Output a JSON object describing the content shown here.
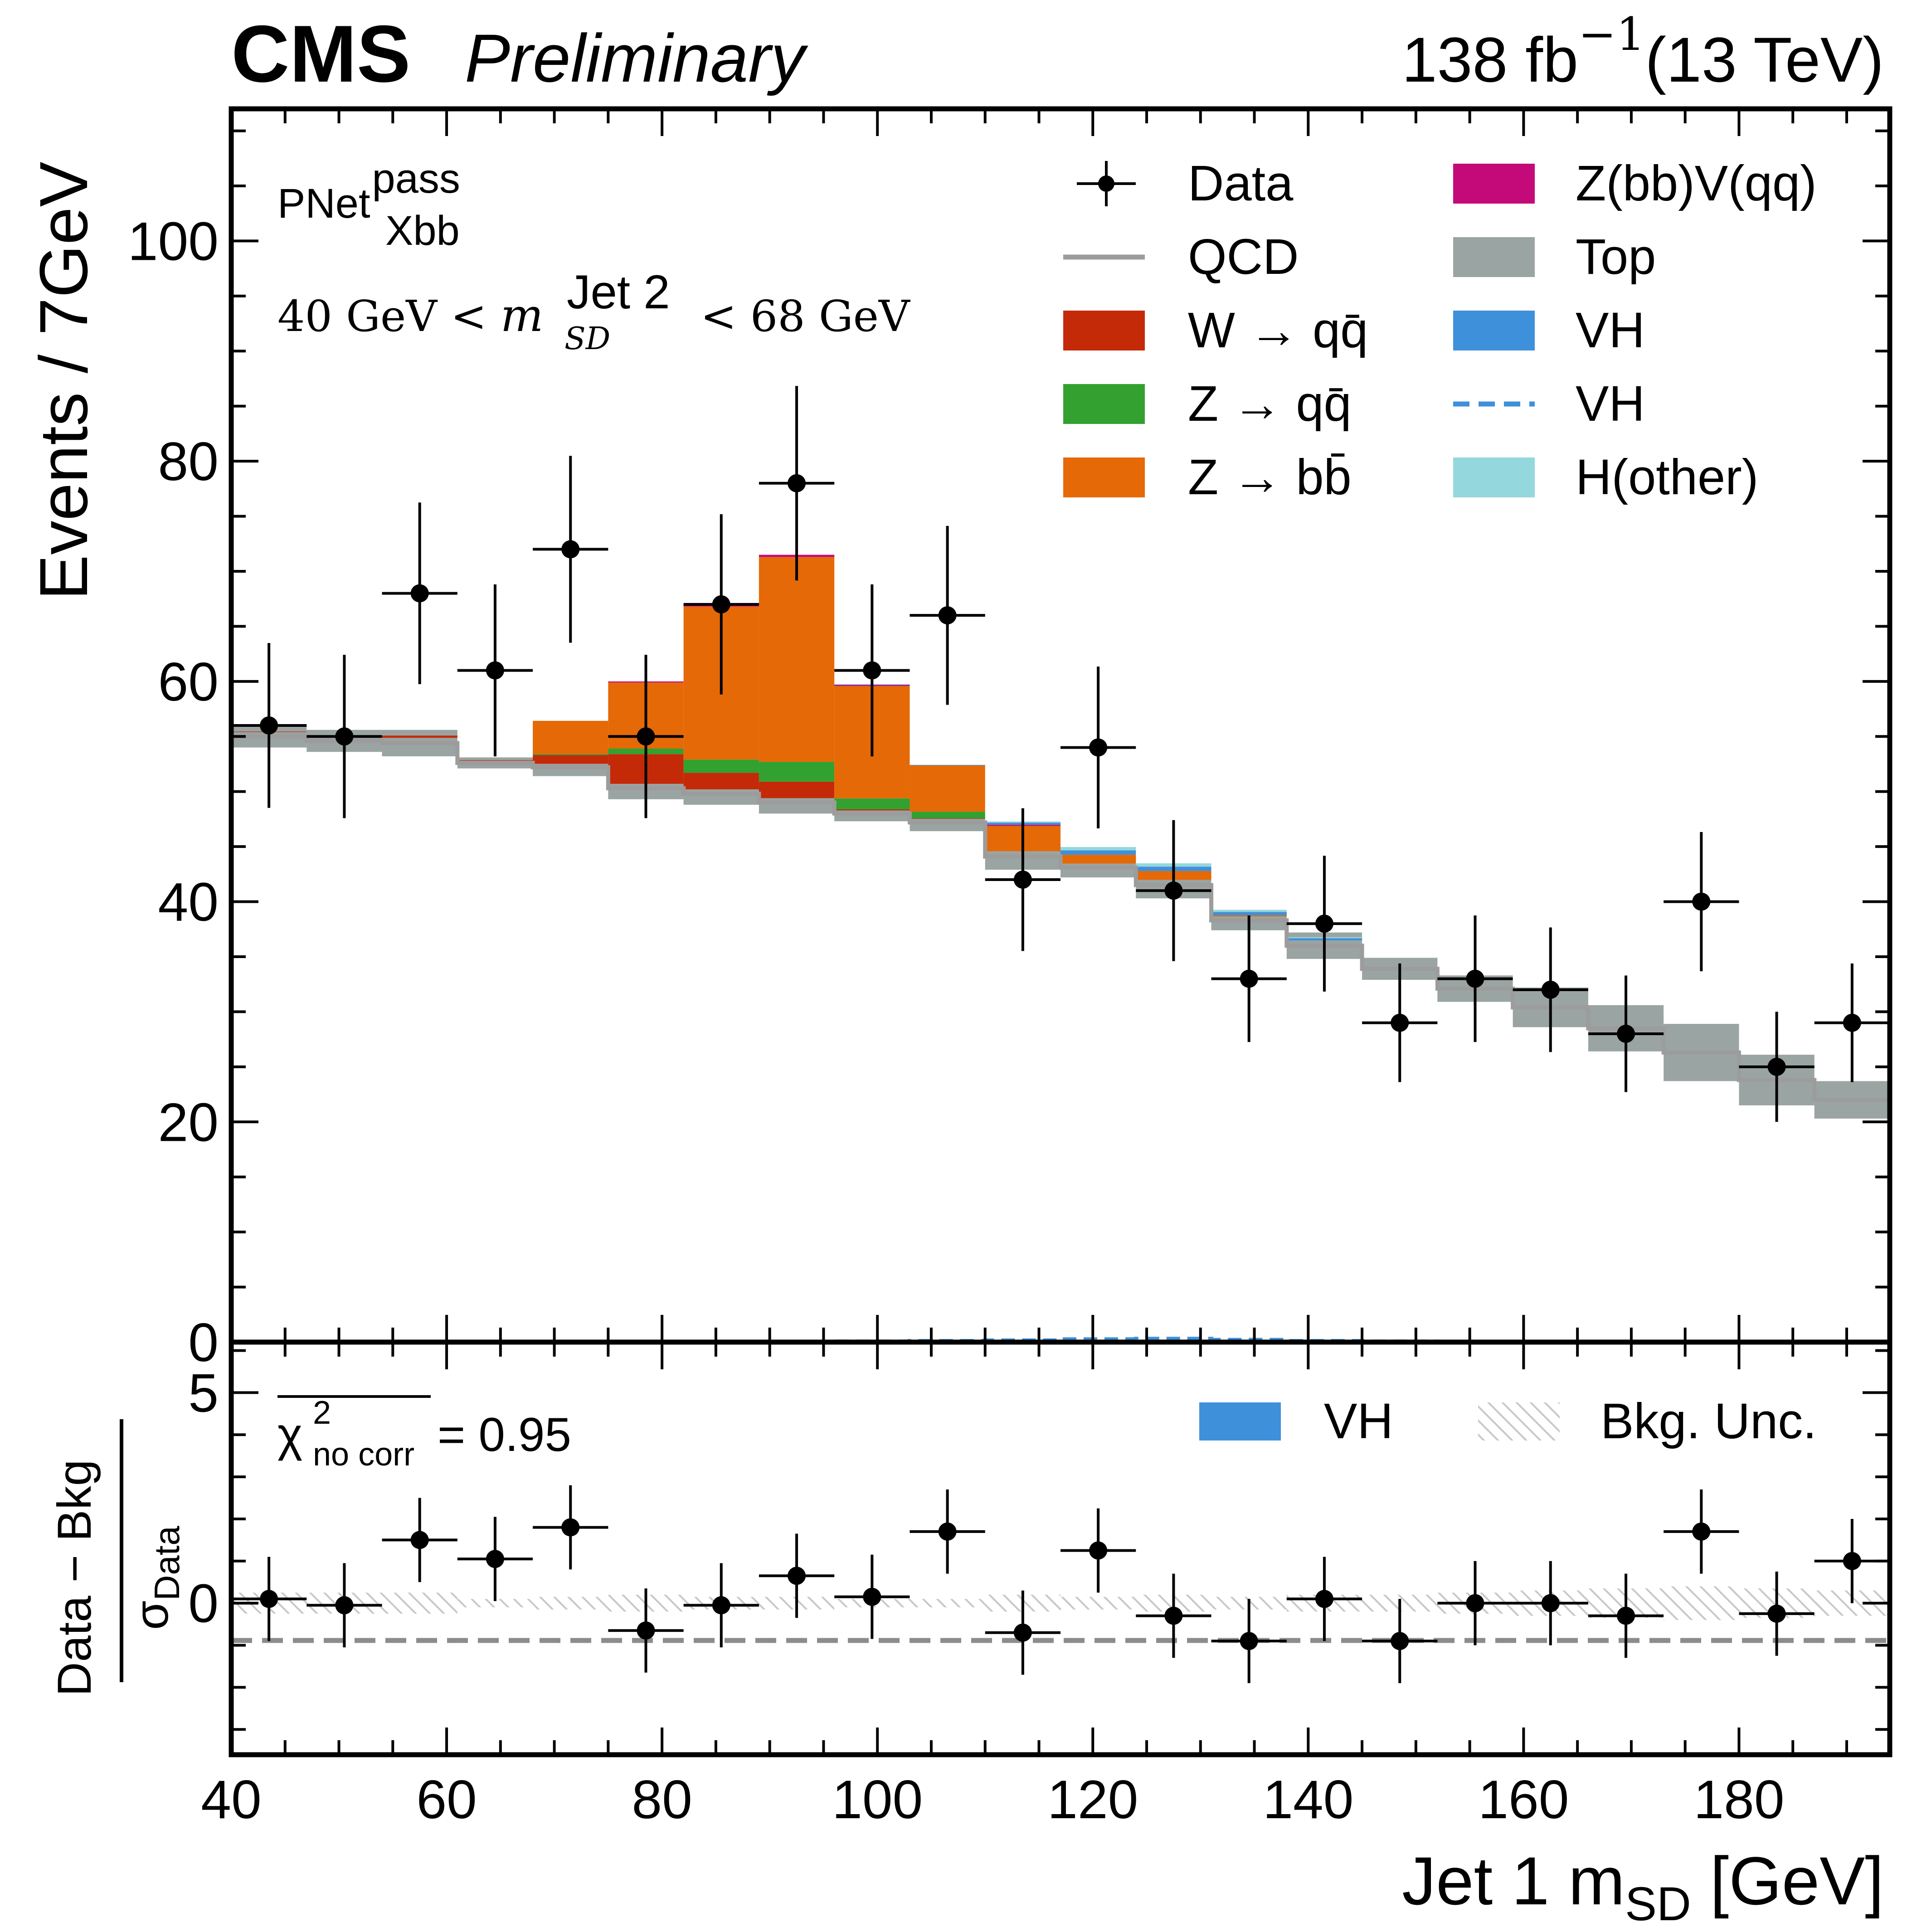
{
  "header": {
    "experiment": "CMS",
    "status": "Preliminary",
    "lumi": "138 fb",
    "lumi_exp": "−1",
    "energy": "(13 TeV)"
  },
  "annotations": {
    "tagger_base": "PNet",
    "tagger_sup": "pass",
    "tagger_sub": "Xbb",
    "cut_left": "40 GeV < ",
    "cut_m": "m",
    "cut_sup": "Jet 2",
    "cut_sub": "SD",
    "cut_right": " < 68 GeV",
    "chi2_symbol": "χ",
    "chi2_sup": "2",
    "chi2_sub": "no corr",
    "chi2_value": " = 0.95"
  },
  "legend_main": [
    {
      "label": "Data",
      "kind": "marker",
      "color": "#000000"
    },
    {
      "label": "QCD",
      "kind": "line",
      "color": "#9c9c9c"
    },
    {
      "label": "W → qq̄",
      "kind": "patch",
      "color": "#c42a08"
    },
    {
      "label": "Z → qq̄",
      "kind": "patch",
      "color": "#32a12f"
    },
    {
      "label": "Z → bb̄",
      "kind": "patch",
      "color": "#e56906"
    },
    {
      "label": "Z(bb)V(qq)",
      "kind": "patch",
      "color": "#c40a78"
    },
    {
      "label": "Top",
      "kind": "patch",
      "color": "#9aa4a2"
    },
    {
      "label": "VH",
      "kind": "patch",
      "color": "#3f90da"
    },
    {
      "label": "VH",
      "kind": "dashed",
      "color": "#3f90da"
    },
    {
      "label": "H(other)",
      "kind": "patch",
      "color": "#94d7dc"
    }
  ],
  "legend_ratio": [
    {
      "label": "VH",
      "kind": "patch",
      "color": "#3f90da"
    },
    {
      "label": "Bkg. Unc.",
      "kind": "hatch",
      "color": "#c8c8c8"
    }
  ],
  "chart_data": [
    {
      "type": "bar",
      "subtype": "stacked-histogram",
      "xlabel": "Jet 1 m",
      "xlabel_sub": "SD",
      "xlabel_unit": " [GeV]",
      "ylabel": "Events / 7GeV",
      "xlim": [
        40,
        194
      ],
      "ylim": [
        0,
        112
      ],
      "xticks": [
        40,
        60,
        80,
        100,
        120,
        140,
        160,
        180
      ],
      "yticks": [
        0,
        20,
        40,
        60,
        80,
        100
      ],
      "bin_edges": [
        40,
        47,
        54,
        61,
        68,
        75,
        82,
        89,
        96,
        103,
        110,
        117,
        124,
        131,
        138,
        145,
        152,
        159,
        166,
        173,
        180,
        187,
        194
      ],
      "data": {
        "x": [
          43.5,
          50.5,
          57.5,
          64.5,
          71.5,
          78.5,
          85.5,
          92.5,
          99.5,
          106.5,
          113.5,
          120.5,
          127.5,
          134.5,
          141.5,
          148.5,
          155.5,
          162.5,
          169.5,
          176.5,
          183.5,
          190.5
        ],
        "y": [
          56,
          55,
          68,
          61,
          72,
          55,
          67,
          78,
          61,
          66,
          42,
          54,
          41,
          33,
          38,
          29,
          33,
          32,
          28,
          40,
          25,
          29
        ]
      },
      "qcd": [
        55.0,
        54.6,
        54.4,
        52.6,
        52.2,
        50.3,
        49.8,
        49.0,
        48.0,
        47.2,
        44.1,
        43.1,
        41.5,
        38.3,
        36.0,
        33.9,
        32.1,
        30.4,
        28.5,
        26.3,
        23.8,
        22.0
      ],
      "qcd_band": [
        1.0,
        1.0,
        1.2,
        0.5,
        0.8,
        1.0,
        1.0,
        1.0,
        0.7,
        0.8,
        1.2,
        0.9,
        1.2,
        0.9,
        1.2,
        1.0,
        1.2,
        1.8,
        2.1,
        2.6,
        2.3,
        1.7
      ],
      "series": [
        {
          "name": "Top",
          "values": [
            0,
            0,
            0,
            0,
            0,
            0,
            0,
            0,
            0,
            0,
            0,
            0,
            0,
            0,
            0,
            0,
            0,
            0,
            0,
            0,
            0,
            0
          ]
        },
        {
          "name": "W → qq̄",
          "values": [
            0.05,
            0.05,
            0.2,
            0.05,
            0.8,
            2.7,
            1.5,
            1.5,
            0.1,
            0.05,
            0,
            0,
            0,
            0,
            0,
            0,
            0,
            0,
            0,
            0,
            0,
            0
          ]
        },
        {
          "name": "Z → qq̄",
          "values": [
            0,
            0,
            0,
            0,
            0.1,
            0.5,
            1.2,
            1.8,
            1.0,
            0.6,
            0,
            0,
            0,
            0,
            0,
            0,
            0,
            0,
            0,
            0,
            0,
            0
          ]
        },
        {
          "name": "Z → bb̄",
          "values": [
            0,
            0,
            0,
            0,
            3.0,
            6.0,
            13.9,
            18.6,
            10.2,
            4.2,
            2.3,
            0.8,
            0.8,
            0.1,
            0,
            0,
            0,
            0,
            0,
            0,
            0,
            0
          ]
        },
        {
          "name": "Z(bb)V(qq)",
          "values": [
            0,
            0,
            0,
            0,
            0,
            0.1,
            0.2,
            0.2,
            0.1,
            0,
            0.1,
            0,
            0,
            0,
            0,
            0,
            0,
            0,
            0,
            0,
            0,
            0
          ]
        },
        {
          "name": "VH",
          "values": [
            0,
            0,
            0,
            0,
            0,
            0,
            0,
            0,
            0.05,
            0.05,
            0.2,
            0.4,
            0.4,
            0.3,
            0.2,
            0,
            0,
            0,
            0,
            0,
            0,
            0
          ]
        },
        {
          "name": "H(other)",
          "values": [
            0,
            0,
            0,
            0,
            0,
            0,
            0,
            0,
            0,
            0,
            0.1,
            0.3,
            0.3,
            0.2,
            0.1,
            0,
            0,
            0,
            0,
            0,
            0,
            0
          ]
        }
      ],
      "vh_signal_dashed": [
        0,
        0,
        0,
        0,
        0,
        0,
        0,
        0.02,
        0.05,
        0.1,
        0.15,
        0.25,
        0.3,
        0.2,
        0.1,
        0.05,
        0,
        0,
        0,
        0,
        0,
        0
      ]
    },
    {
      "type": "scatter",
      "subtype": "pull",
      "ylabel_num": "Data − Bkg",
      "ylabel_den": "σ",
      "ylabel_den_sub": "Data",
      "xlim": [
        40,
        194
      ],
      "ylim": [
        -3.6,
        6.2
      ],
      "yticks": [
        0,
        5
      ],
      "x": [
        43.5,
        50.5,
        57.5,
        64.5,
        71.5,
        78.5,
        85.5,
        92.5,
        99.5,
        106.5,
        113.5,
        120.5,
        127.5,
        134.5,
        141.5,
        148.5,
        155.5,
        162.5,
        169.5,
        176.5,
        183.5,
        190.5
      ],
      "y": [
        0.1,
        -0.05,
        1.5,
        1.05,
        1.8,
        -0.65,
        -0.05,
        0.65,
        0.15,
        1.7,
        -0.7,
        1.25,
        -0.3,
        -0.9,
        0.1,
        -0.9,
        0.0,
        0.0,
        -0.3,
        1.7,
        -0.25,
        1.0
      ],
      "band": [
        0.25,
        0.25,
        0.25,
        0.1,
        0.15,
        0.2,
        0.15,
        0.15,
        0.1,
        0.1,
        0.2,
        0.15,
        0.2,
        0.15,
        0.2,
        0.2,
        0.25,
        0.3,
        0.35,
        0.4,
        0.35,
        0.3
      ]
    }
  ]
}
